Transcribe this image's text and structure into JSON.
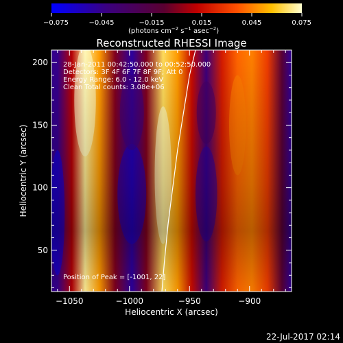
{
  "chart_data": {
    "type": "heatmap",
    "title": "Reconstructed RHESSI Image",
    "xlabel": "Heliocentric X (arcsec)",
    "ylabel": "Heliocentric Y (arcsec)",
    "xlim": [
      -1065,
      -865
    ],
    "ylim": [
      17,
      210
    ],
    "xticks": [
      -1050,
      -1000,
      -950,
      -900
    ],
    "xtick_labels": [
      "−1050",
      "−1000",
      "−950",
      "−900"
    ],
    "yticks": [
      50,
      100,
      150,
      200
    ],
    "ytick_labels": [
      "50",
      "100",
      "150",
      "200"
    ],
    "colorbar": {
      "range": [
        -0.075,
        0.075
      ],
      "ticks": [
        -0.075,
        -0.045,
        -0.015,
        0.015,
        0.045,
        0.075
      ],
      "tick_labels": [
        "−0.075",
        "−0.045",
        "−0.015",
        "0.015",
        "0.045",
        "0.075"
      ],
      "unit_label": "(photons cm",
      "unit_exp1": "−2",
      "unit_mid": " s",
      "unit_exp2": "−1",
      "unit_tail": " asec",
      "unit_exp3": "−2",
      "unit_close": ")"
    },
    "annotations": [
      "28-Jan-2011 00:42:50.000 to 00:52:50.000",
      "Detectors: 3F 4F 6F 7F 8F 9F; Att 0",
      "Energy Range: 6.0 - 12.0 keV",
      "Clean    Total counts: 3.08e+06"
    ],
    "peak_label": "Position of Peak = [-1001,  22]",
    "limb_curve": [
      [
        -945,
        210
      ],
      [
        -950,
        190
      ],
      [
        -955,
        160
      ],
      [
        -960,
        130
      ],
      [
        -964,
        100
      ],
      [
        -968,
        70
      ],
      [
        -971,
        40
      ],
      [
        -973,
        17
      ]
    ],
    "stripes": [
      {
        "x": -1060,
        "value": -0.045
      },
      {
        "x": -1048,
        "value": 0.01
      },
      {
        "x": -1037,
        "value": 0.07
      },
      {
        "x": -1025,
        "value": 0.05
      },
      {
        "x": -1012,
        "value": 0.0
      },
      {
        "x": -998,
        "value": -0.05
      },
      {
        "x": -986,
        "value": 0.0
      },
      {
        "x": -972,
        "value": 0.065
      },
      {
        "x": -960,
        "value": 0.05
      },
      {
        "x": -948,
        "value": 0.015
      },
      {
        "x": -936,
        "value": -0.04
      },
      {
        "x": -923,
        "value": 0.02
      },
      {
        "x": -910,
        "value": 0.04
      },
      {
        "x": -898,
        "value": 0.045
      },
      {
        "x": -885,
        "value": 0.03
      },
      {
        "x": -873,
        "value": -0.01
      },
      {
        "x": -866,
        "value": -0.045
      }
    ]
  },
  "footer": {
    "timestamp": "22-Jul-2017 02:14"
  }
}
